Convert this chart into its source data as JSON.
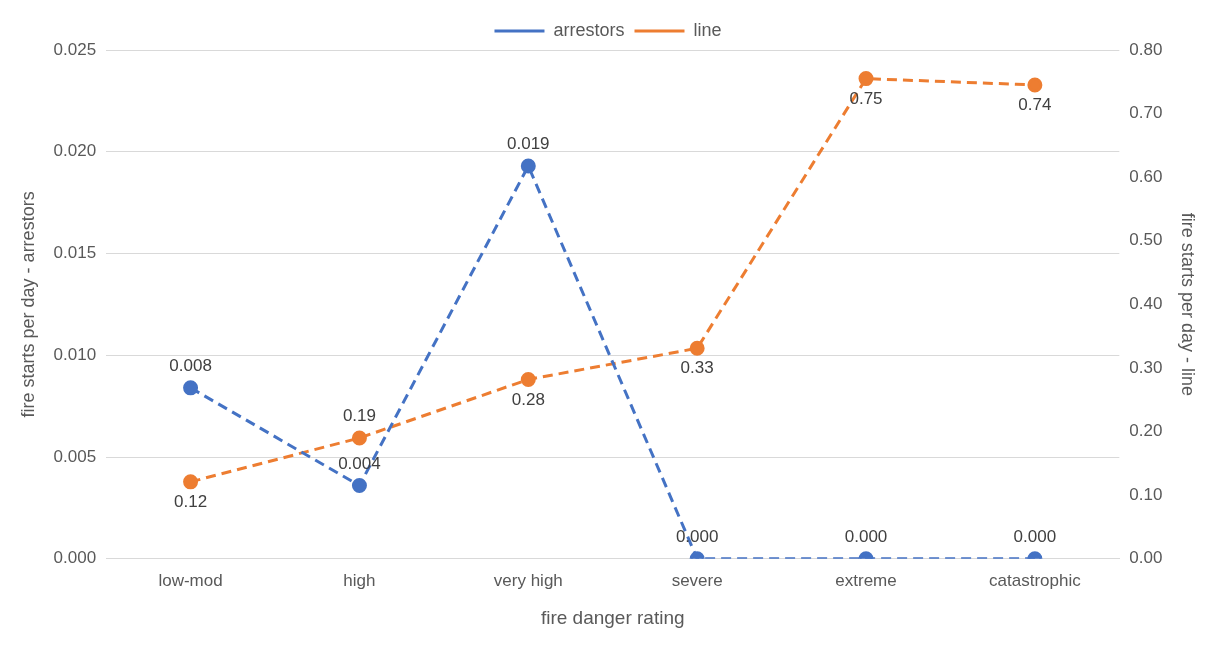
{
  "chart_data": {
    "type": "line",
    "xlabel": "fire danger rating",
    "ylabel": "fire starts per day - arrestors",
    "y2label": "fire starts per day - line",
    "categories": [
      "low-mod",
      "high",
      "very high",
      "severe",
      "extreme",
      "catastrophic"
    ],
    "series": [
      {
        "name": "arrestors",
        "color": "#4472c4",
        "values": [
          0.0084,
          0.0036,
          0.0193,
          0,
          0,
          0
        ],
        "value_labels": [
          "0.008",
          "0.004",
          "0.019",
          "0.000",
          "0.000",
          "0.000"
        ]
      },
      {
        "name": "line",
        "color": "#ed7d31",
        "axis": "y2",
        "values": [
          0.121,
          0.19,
          0.282,
          0.331,
          0.755,
          0.745
        ],
        "value_labels": [
          "0.12",
          "0.19",
          "0.28",
          "0.33",
          "0.75",
          "0.74"
        ]
      }
    ],
    "ylim": [
      0,
      0.025
    ],
    "yticks": [
      {
        "value": 0,
        "label": "0.000"
      },
      {
        "value": 0.005,
        "label": "0.005"
      },
      {
        "value": 0.01,
        "label": "0.010"
      },
      {
        "value": 0.015,
        "label": "0.015"
      },
      {
        "value": 0.02,
        "label": "0.020"
      },
      {
        "value": 0.025,
        "label": "0.025"
      }
    ],
    "y2lim": [
      0,
      0.8
    ],
    "y2ticks": [
      {
        "value": 0,
        "label": "0.00"
      },
      {
        "value": 0.1,
        "label": "0.10"
      },
      {
        "value": 0.2,
        "label": "0.20"
      },
      {
        "value": 0.3,
        "label": "0.30"
      },
      {
        "value": 0.4,
        "label": "0.40"
      },
      {
        "value": 0.5,
        "label": "0.50"
      },
      {
        "value": 0.6,
        "label": "0.60"
      },
      {
        "value": 0.7,
        "label": "0.70"
      },
      {
        "value": 0.8,
        "label": "0.80"
      }
    ],
    "grid": "y",
    "legend": "top",
    "marker": "circle",
    "line_style": "dashed"
  }
}
